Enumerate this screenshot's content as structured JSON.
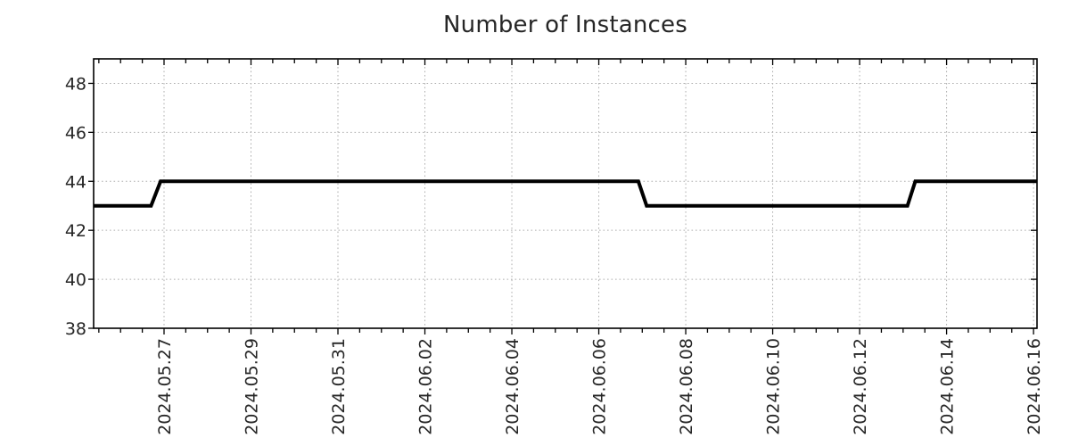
{
  "chart_data": {
    "type": "line",
    "title": "Number of Instances",
    "xlabel": "",
    "ylabel": "",
    "ylim": [
      38,
      49
    ],
    "yticks": [
      38,
      40,
      42,
      44,
      46,
      48
    ],
    "day_reference": "2024.05.27",
    "xlim_days_from_first_label": [
      -1.62,
      20.08
    ],
    "x_major_ticks": [
      {
        "day": 0,
        "label": "2024.05.27"
      },
      {
        "day": 2,
        "label": "2024.05.29"
      },
      {
        "day": 4,
        "label": "2024.05.31"
      },
      {
        "day": 6,
        "label": "2024.06.02"
      },
      {
        "day": 8,
        "label": "2024.06.04"
      },
      {
        "day": 10,
        "label": "2024.06.06"
      },
      {
        "day": 12,
        "label": "2024.06.08"
      },
      {
        "day": 14,
        "label": "2024.06.10"
      },
      {
        "day": 16,
        "label": "2024.06.12"
      },
      {
        "day": 18,
        "label": "2024.06.14"
      },
      {
        "day": 20,
        "label": "2024.06.16"
      }
    ],
    "x_minor_tick_interval_days": 0.5,
    "grid": {
      "show": true,
      "style": "dotted",
      "color": "#aeaeae"
    },
    "legend": {
      "show": false
    },
    "axes_color": "#000000",
    "text_color": "#262626",
    "series": [
      {
        "name": "Number of Instances",
        "color": "#000000",
        "line_width": 4,
        "points": [
          {
            "day": -1.62,
            "value": 43
          },
          {
            "day": -0.3,
            "value": 43
          },
          {
            "day": -0.08,
            "value": 44
          },
          {
            "day": 10.91,
            "value": 44
          },
          {
            "day": 11.1,
            "value": 43
          },
          {
            "day": 17.1,
            "value": 43
          },
          {
            "day": 17.28,
            "value": 44
          },
          {
            "day": 20.08,
            "value": 44
          }
        ]
      }
    ]
  }
}
